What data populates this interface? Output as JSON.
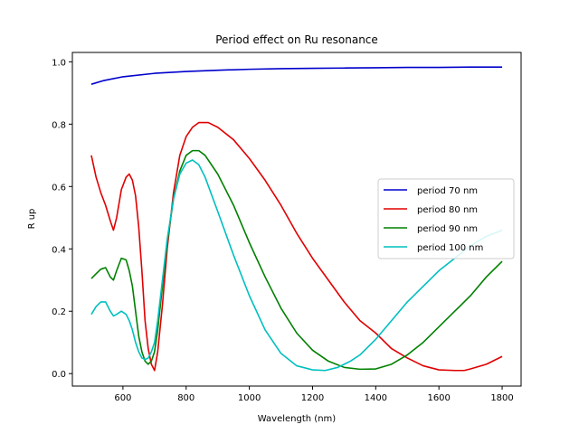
{
  "chart_data": {
    "type": "line",
    "title": "Period effect on Ru resonance",
    "xlabel": "Wavelength (nm)",
    "ylabel": "R up",
    "xlim": [
      440,
      1860
    ],
    "ylim": [
      -0.04,
      1.03
    ],
    "xticks": [
      600,
      800,
      1000,
      1200,
      1400,
      1600,
      1800
    ],
    "xtick_labels": [
      "600",
      "800",
      "1000",
      "1200",
      "1400",
      "1600",
      "1800"
    ],
    "yticks": [
      0.0,
      0.2,
      0.4,
      0.6,
      0.8,
      1.0
    ],
    "ytick_labels": [
      "0.0",
      "0.2",
      "0.4",
      "0.6",
      "0.8",
      "1.0"
    ],
    "grid": false,
    "legend_position": "center-right",
    "series": [
      {
        "name": "period 70 nm",
        "color": "#0000cc",
        "x": [
          500,
          540,
          600,
          700,
          800,
          900,
          1000,
          1100,
          1200,
          1300,
          1400,
          1500,
          1600,
          1700,
          1800
        ],
        "y": [
          0.928,
          0.94,
          0.952,
          0.963,
          0.969,
          0.973,
          0.976,
          0.978,
          0.979,
          0.98,
          0.981,
          0.982,
          0.982,
          0.983,
          0.983
        ]
      },
      {
        "name": "period 80 nm",
        "color": "#e00000",
        "x": [
          500,
          515,
          530,
          545,
          560,
          570,
          580,
          595,
          610,
          620,
          630,
          640,
          650,
          660,
          670,
          680,
          690,
          700,
          710,
          725,
          740,
          760,
          780,
          800,
          820,
          840,
          870,
          900,
          950,
          1000,
          1050,
          1100,
          1150,
          1200,
          1250,
          1300,
          1350,
          1400,
          1450,
          1500,
          1550,
          1600,
          1650,
          1680,
          1700,
          1750,
          1800
        ],
        "y": [
          0.7,
          0.63,
          0.58,
          0.54,
          0.49,
          0.46,
          0.5,
          0.59,
          0.63,
          0.64,
          0.62,
          0.57,
          0.47,
          0.33,
          0.17,
          0.08,
          0.03,
          0.01,
          0.07,
          0.22,
          0.4,
          0.58,
          0.7,
          0.76,
          0.79,
          0.805,
          0.805,
          0.79,
          0.75,
          0.69,
          0.62,
          0.54,
          0.45,
          0.37,
          0.3,
          0.23,
          0.17,
          0.13,
          0.08,
          0.05,
          0.025,
          0.012,
          0.01,
          0.01,
          0.015,
          0.03,
          0.055
        ]
      },
      {
        "name": "period 90 nm",
        "color": "#008000",
        "x": [
          500,
          515,
          530,
          545,
          560,
          570,
          580,
          595,
          610,
          620,
          630,
          640,
          650,
          660,
          670,
          680,
          690,
          700,
          710,
          725,
          740,
          760,
          780,
          800,
          820,
          840,
          860,
          900,
          950,
          1000,
          1050,
          1100,
          1150,
          1200,
          1250,
          1300,
          1350,
          1400,
          1450,
          1500,
          1550,
          1600,
          1650,
          1700,
          1750,
          1800
        ],
        "y": [
          0.305,
          0.32,
          0.335,
          0.34,
          0.31,
          0.3,
          0.33,
          0.37,
          0.365,
          0.33,
          0.28,
          0.2,
          0.12,
          0.07,
          0.04,
          0.03,
          0.04,
          0.07,
          0.14,
          0.28,
          0.42,
          0.56,
          0.65,
          0.7,
          0.715,
          0.715,
          0.7,
          0.64,
          0.54,
          0.42,
          0.31,
          0.21,
          0.13,
          0.075,
          0.04,
          0.02,
          0.014,
          0.015,
          0.03,
          0.06,
          0.1,
          0.15,
          0.2,
          0.25,
          0.31,
          0.36
        ]
      },
      {
        "name": "period 100 nm",
        "color": "#00bfbf",
        "x": [
          500,
          515,
          530,
          545,
          560,
          570,
          580,
          595,
          610,
          620,
          630,
          640,
          650,
          660,
          670,
          680,
          690,
          700,
          710,
          725,
          740,
          760,
          780,
          800,
          820,
          840,
          860,
          900,
          950,
          1000,
          1050,
          1100,
          1150,
          1200,
          1240,
          1280,
          1320,
          1350,
          1400,
          1450,
          1500,
          1550,
          1600,
          1650,
          1700,
          1750,
          1800
        ],
        "y": [
          0.19,
          0.215,
          0.23,
          0.23,
          0.2,
          0.185,
          0.19,
          0.2,
          0.19,
          0.17,
          0.14,
          0.1,
          0.07,
          0.05,
          0.045,
          0.05,
          0.07,
          0.1,
          0.17,
          0.3,
          0.43,
          0.56,
          0.64,
          0.675,
          0.685,
          0.67,
          0.63,
          0.52,
          0.38,
          0.25,
          0.14,
          0.065,
          0.025,
          0.012,
          0.01,
          0.02,
          0.04,
          0.06,
          0.11,
          0.17,
          0.23,
          0.28,
          0.33,
          0.37,
          0.41,
          0.44,
          0.46
        ]
      }
    ]
  }
}
